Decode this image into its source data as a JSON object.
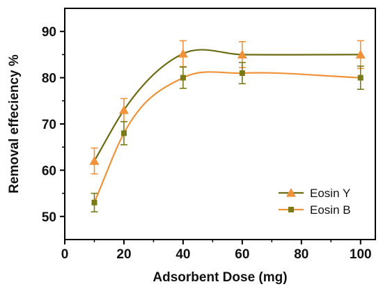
{
  "chart_data": {
    "type": "line",
    "xlabel": "Adsorbent Dose (mg)",
    "ylabel": "Removal effeciency %",
    "xlim": [
      0,
      105
    ],
    "ylim": [
      45,
      95
    ],
    "xticks": [
      0,
      20,
      40,
      60,
      80,
      100
    ],
    "yticks": [
      50,
      60,
      70,
      80,
      90
    ],
    "grid": false,
    "legend_position": "bottom-right",
    "x": [
      10,
      20,
      40,
      60,
      100
    ],
    "series": [
      {
        "name": "Eosin Y",
        "values": [
          62.0,
          73.0,
          85.2,
          85.0,
          85.0
        ],
        "errors": [
          2.8,
          2.5,
          2.8,
          2.8,
          3.0
        ],
        "line_color": "#6b6b12",
        "marker": "triangle",
        "marker_color": "#f0923a"
      },
      {
        "name": "Eosin B",
        "values": [
          53.0,
          68.0,
          80.0,
          81.0,
          80.0
        ],
        "errors": [
          2.0,
          2.5,
          2.3,
          2.3,
          2.5
        ],
        "line_color": "#f0923a",
        "marker": "square",
        "marker_color": "#7a7a16"
      }
    ]
  }
}
